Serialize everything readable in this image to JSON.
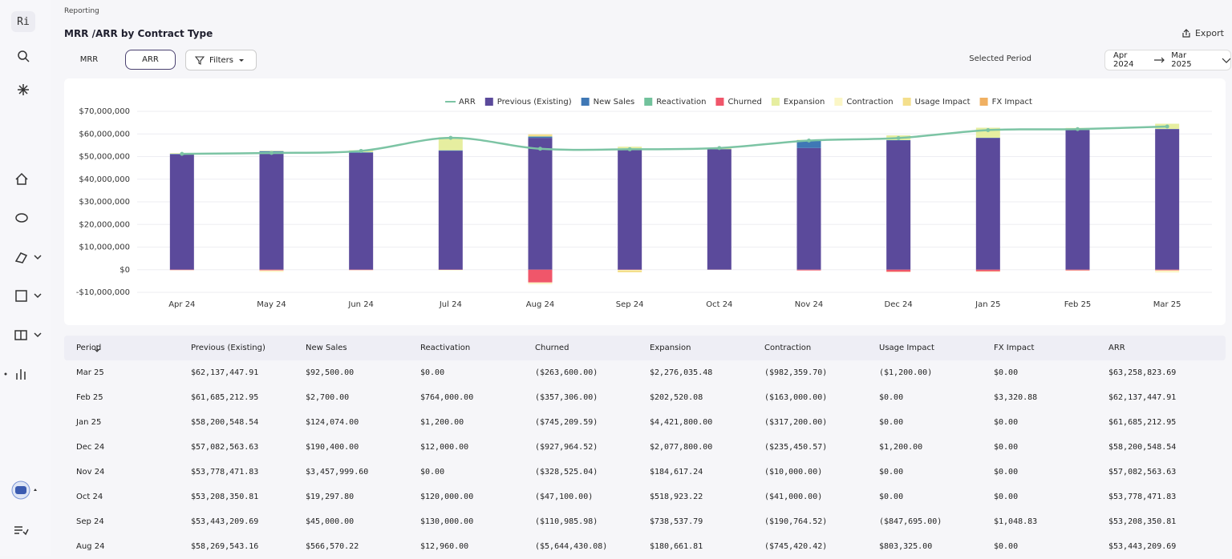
{
  "sidebar_logo": "Ri",
  "breadcrumb": "Reporting",
  "title": "MRR /ARR by Contract Type",
  "export": "Export",
  "tabs": [
    "MRR",
    "ARR"
  ],
  "filters": "Filters",
  "period_label": "Selected Period",
  "period_start": "Apr 2024",
  "period_end": "Mar 2025",
  "chart_data": {
    "type": "bar",
    "stacked": true,
    "categories": [
      "Apr 24",
      "May 24",
      "Jun 24",
      "Jul 24",
      "Aug 24",
      "Sep 24",
      "Oct 24",
      "Nov 24",
      "Dec 24",
      "Jan 25",
      "Feb 25",
      "Mar 25"
    ],
    "series": [
      {
        "name": "ARR",
        "type": "line",
        "color": "#7cc4a4",
        "values": [
          51200000,
          51600000,
          52500000,
          58269543.16,
          53443209.69,
          53208350.81,
          53778471.83,
          57082563.63,
          58200548.54,
          61685212.95,
          62137447.91,
          63258823.69
        ]
      },
      {
        "name": "Previous (Existing)",
        "color": "#5b4a9b",
        "values": [
          51000000,
          51200000,
          51600000,
          52500000,
          58269543.16,
          53443209.69,
          53208350.81,
          53778471.83,
          57082563.63,
          58200548.54,
          61685212.95,
          62137447.91
        ]
      },
      {
        "name": "New Sales",
        "color": "#3f78b5",
        "values": [
          200000,
          1200000,
          300000,
          269543.16,
          566570.22,
          45000,
          19297.8,
          3457999.6,
          190400,
          124074,
          2700,
          92500
        ]
      },
      {
        "name": "Reactivation",
        "color": "#72c29c",
        "values": [
          0,
          0,
          0,
          0,
          12960,
          130000,
          120000,
          0,
          12000,
          1200,
          764000,
          0
        ]
      },
      {
        "name": "Churned",
        "color": "#f0566a",
        "values": [
          -200000,
          -300000,
          -200000,
          -100000,
          -5644430.08,
          -110985.98,
          -47100,
          -328525.04,
          -927964.52,
          -745209.59,
          -357306,
          -263600
        ]
      },
      {
        "name": "Expansion",
        "color": "#e6eea0",
        "values": [
          300000,
          200000,
          900000,
          5800000,
          180661.81,
          738537.79,
          518923.22,
          184617.24,
          2077800,
          4421800,
          202520.08,
          2276035.48
        ]
      },
      {
        "name": "Contraction",
        "color": "#fbf6c6",
        "values": [
          -100000,
          -700000,
          -100000,
          -200000,
          -745420.42,
          -190764.52,
          -41000,
          -10000,
          -235450.57,
          -317200,
          -163000,
          -982359.7
        ]
      },
      {
        "name": "Usage Impact",
        "color": "#f4df8c",
        "values": [
          0,
          0,
          0,
          0,
          803325,
          -847695,
          0,
          0,
          1200,
          0,
          0,
          -1200
        ]
      },
      {
        "name": "FX Impact",
        "color": "#f0b062",
        "values": [
          0,
          0,
          0,
          0,
          0,
          1048.83,
          0,
          0,
          0,
          0,
          3320.88,
          0
        ]
      }
    ],
    "ylim": [
      -10000000,
      70000000
    ],
    "yticks": [
      {
        "value": -10000000,
        "label": "-$10,000,000"
      },
      {
        "value": 0,
        "label": "$0"
      },
      {
        "value": 10000000,
        "label": "$10,000,000"
      },
      {
        "value": 20000000,
        "label": "$20,000,000"
      },
      {
        "value": 30000000,
        "label": "$30,000,000"
      },
      {
        "value": 40000000,
        "label": "$40,000,000"
      },
      {
        "value": 50000000,
        "label": "$50,000,000"
      },
      {
        "value": 60000000,
        "label": "$60,000,000"
      },
      {
        "value": 70000000,
        "label": "$70,000,000"
      }
    ],
    "grid": true,
    "legend": "top"
  },
  "table": {
    "columns": [
      "Period",
      "Previous (Existing)",
      "New Sales",
      "Reactivation",
      "Churned",
      "Expansion",
      "Contraction",
      "Usage Impact",
      "FX Impact",
      "ARR"
    ],
    "rows": [
      [
        "Mar 25",
        "$62,137,447.91",
        "$92,500.00",
        "$0.00",
        "($263,600.00)",
        "$2,276,035.48",
        "($982,359.70)",
        "($1,200.00)",
        "$0.00",
        "$63,258,823.69"
      ],
      [
        "Feb 25",
        "$61,685,212.95",
        "$2,700.00",
        "$764,000.00",
        "($357,306.00)",
        "$202,520.08",
        "($163,000.00)",
        "$0.00",
        "$3,320.88",
        "$62,137,447.91"
      ],
      [
        "Jan 25",
        "$58,200,548.54",
        "$124,074.00",
        "$1,200.00",
        "($745,209.59)",
        "$4,421,800.00",
        "($317,200.00)",
        "$0.00",
        "$0.00",
        "$61,685,212.95"
      ],
      [
        "Dec 24",
        "$57,082,563.63",
        "$190,400.00",
        "$12,000.00",
        "($927,964.52)",
        "$2,077,800.00",
        "($235,450.57)",
        "$1,200.00",
        "$0.00",
        "$58,200,548.54"
      ],
      [
        "Nov 24",
        "$53,778,471.83",
        "$3,457,999.60",
        "$0.00",
        "($328,525.04)",
        "$184,617.24",
        "($10,000.00)",
        "$0.00",
        "$0.00",
        "$57,082,563.63"
      ],
      [
        "Oct 24",
        "$53,208,350.81",
        "$19,297.80",
        "$120,000.00",
        "($47,100.00)",
        "$518,923.22",
        "($41,000.00)",
        "$0.00",
        "$0.00",
        "$53,778,471.83"
      ],
      [
        "Sep 24",
        "$53,443,209.69",
        "$45,000.00",
        "$130,000.00",
        "($110,985.98)",
        "$738,537.79",
        "($190,764.52)",
        "($847,695.00)",
        "$1,048.83",
        "$53,208,350.81"
      ],
      [
        "Aug 24",
        "$58,269,543.16",
        "$566,570.22",
        "$12,960.00",
        "($5,644,430.08)",
        "$180,661.81",
        "($745,420.42)",
        "$803,325.00",
        "$0.00",
        "$53,443,209.69"
      ]
    ]
  }
}
